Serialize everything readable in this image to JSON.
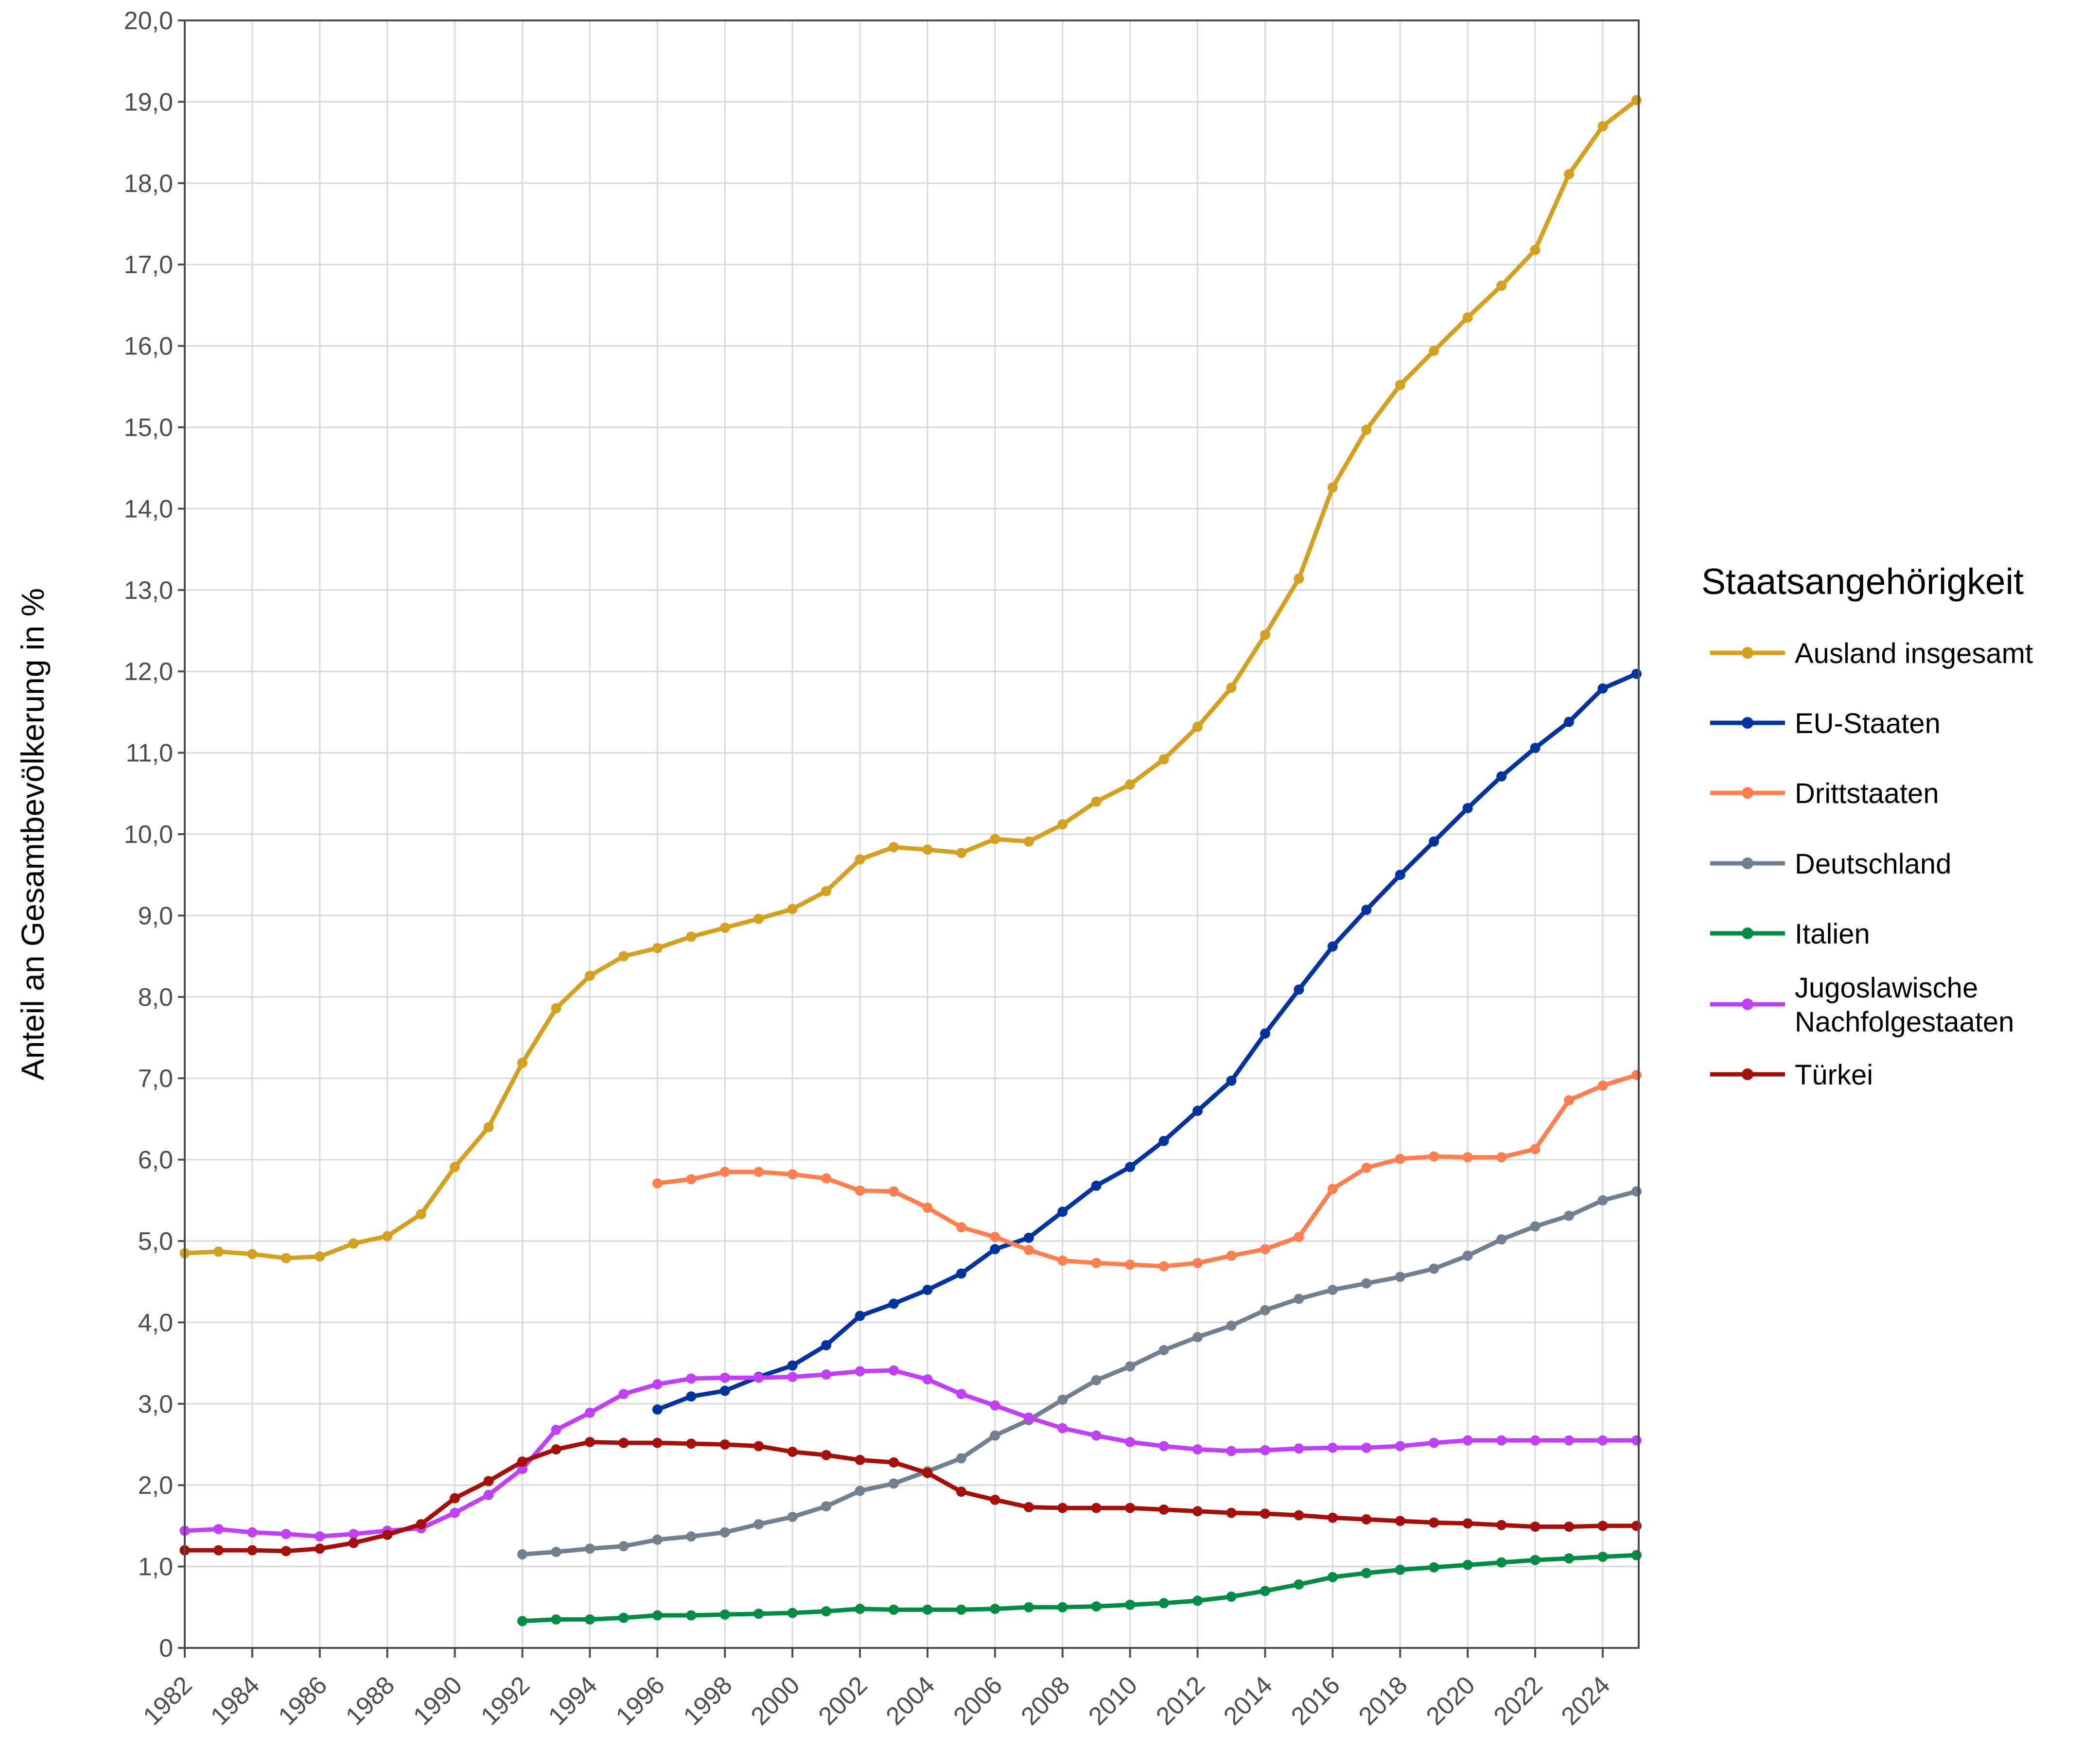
{
  "chart_data": {
    "type": "line",
    "title": "",
    "xlabel": "",
    "ylabel": "Anteil an Gesamtbevölkerung in %",
    "xlim": [
      1982,
      2025
    ],
    "ylim": [
      0,
      20
    ],
    "grid": true,
    "x_ticks": [
      "1982",
      "1984",
      "1986",
      "1988",
      "1990",
      "1992",
      "1994",
      "1996",
      "1998",
      "2000",
      "2002",
      "2004",
      "2006",
      "2008",
      "2010",
      "2012",
      "2014",
      "2016",
      "2018",
      "2020",
      "2022",
      "2024"
    ],
    "y_ticks": [
      "0",
      "1,0",
      "2,0",
      "3,0",
      "4,0",
      "5,0",
      "6,0",
      "7,0",
      "8,0",
      "9,0",
      "10,0",
      "11,0",
      "12,0",
      "13,0",
      "14,0",
      "15,0",
      "16,0",
      "17,0",
      "18,0",
      "19,0",
      "20,0"
    ],
    "legend": {
      "title": "Staatsangehörigkeit",
      "position": "right"
    },
    "series": [
      {
        "name": "Ausland insgesamt",
        "color": "#D4A020",
        "start": 1982,
        "values": [
          4.85,
          4.87,
          4.84,
          4.79,
          4.81,
          4.97,
          5.06,
          5.33,
          5.91,
          6.4,
          7.19,
          7.86,
          8.26,
          8.5,
          8.6,
          8.74,
          8.85,
          8.96,
          9.08,
          9.3,
          9.69,
          9.84,
          9.81,
          9.77,
          9.94,
          9.91,
          10.12,
          10.4,
          10.61,
          10.92,
          11.32,
          11.8,
          12.45,
          13.14,
          14.26,
          14.97,
          15.52,
          15.94,
          16.35,
          16.74,
          17.18,
          18.11,
          18.7,
          19.02
        ]
      },
      {
        "name": "EU-Staaten",
        "color": "#0033A0",
        "start": 1996,
        "values": [
          2.93,
          3.09,
          3.16,
          3.33,
          3.47,
          3.72,
          4.08,
          4.23,
          4.4,
          4.6,
          4.9,
          5.04,
          5.36,
          5.68,
          5.91,
          6.23,
          6.6,
          6.97,
          7.55,
          8.09,
          8.62,
          9.07,
          9.5,
          9.91,
          10.32,
          10.71,
          11.06,
          11.38,
          11.79,
          11.97
        ]
      },
      {
        "name": "Drittstaaten",
        "color": "#FF7F50",
        "start": 1996,
        "values": [
          5.71,
          5.76,
          5.85,
          5.85,
          5.82,
          5.77,
          5.62,
          5.61,
          5.41,
          5.17,
          5.05,
          4.89,
          4.76,
          4.73,
          4.71,
          4.69,
          4.73,
          4.82,
          4.9,
          5.05,
          5.64,
          5.9,
          6.01,
          6.04,
          6.03,
          6.03,
          6.13,
          6.73,
          6.91,
          7.04
        ]
      },
      {
        "name": "Deutschland",
        "color": "#708090",
        "start": 1992,
        "values": [
          1.15,
          1.18,
          1.22,
          1.25,
          1.33,
          1.37,
          1.42,
          1.52,
          1.61,
          1.74,
          1.93,
          2.02,
          2.17,
          2.33,
          2.61,
          2.8,
          3.05,
          3.29,
          3.46,
          3.66,
          3.82,
          3.96,
          4.15,
          4.29,
          4.4,
          4.48,
          4.56,
          4.66,
          4.82,
          5.02,
          5.18,
          5.31,
          5.5,
          5.61
        ]
      },
      {
        "name": "Italien",
        "color": "#008C45",
        "start": 1992,
        "values": [
          0.33,
          0.35,
          0.35,
          0.37,
          0.4,
          0.4,
          0.41,
          0.42,
          0.43,
          0.45,
          0.48,
          0.47,
          0.47,
          0.47,
          0.48,
          0.5,
          0.5,
          0.51,
          0.53,
          0.55,
          0.58,
          0.63,
          0.7,
          0.78,
          0.87,
          0.92,
          0.96,
          0.99,
          1.02,
          1.05,
          1.08,
          1.1,
          1.12,
          1.14
        ]
      },
      {
        "name": "Jugoslawische Nachfolgestaaten",
        "label_lines": [
          "Jugoslawische",
          "Nachfolgestaaten"
        ],
        "color": "#C040F8",
        "start": 1982,
        "values": [
          1.44,
          1.46,
          1.42,
          1.4,
          1.37,
          1.4,
          1.44,
          1.47,
          1.66,
          1.88,
          2.2,
          2.68,
          2.89,
          3.12,
          3.24,
          3.31,
          3.32,
          3.32,
          3.33,
          3.36,
          3.4,
          3.41,
          3.3,
          3.12,
          2.98,
          2.83,
          2.7,
          2.61,
          2.53,
          2.48,
          2.44,
          2.42,
          2.43,
          2.45,
          2.46,
          2.46,
          2.48,
          2.52,
          2.55,
          2.55,
          2.55,
          2.55,
          2.55,
          2.55
        ]
      },
      {
        "name": "Türkei",
        "color": "#A50F0A",
        "start": 1982,
        "values": [
          1.2,
          1.2,
          1.2,
          1.19,
          1.22,
          1.29,
          1.39,
          1.52,
          1.84,
          2.05,
          2.29,
          2.44,
          2.53,
          2.52,
          2.52,
          2.51,
          2.5,
          2.48,
          2.41,
          2.37,
          2.31,
          2.28,
          2.15,
          1.92,
          1.82,
          1.73,
          1.72,
          1.72,
          1.72,
          1.7,
          1.68,
          1.66,
          1.65,
          1.63,
          1.6,
          1.58,
          1.56,
          1.54,
          1.53,
          1.51,
          1.49,
          1.49,
          1.5,
          1.5
        ]
      }
    ]
  }
}
